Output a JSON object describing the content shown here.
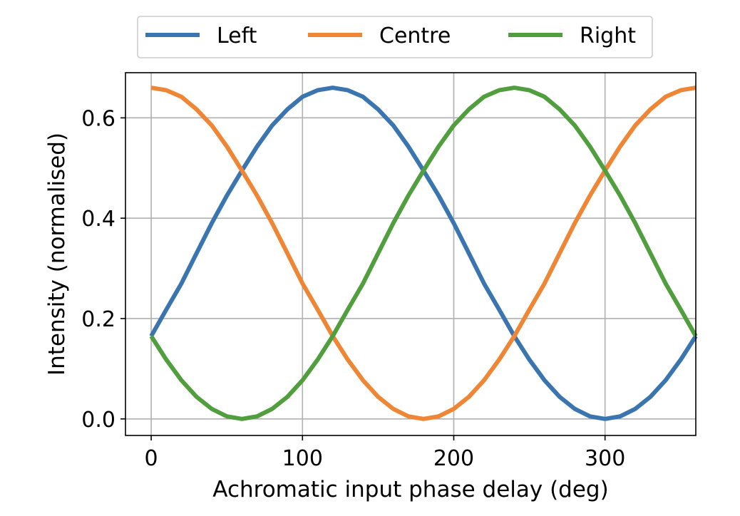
{
  "chart_data": {
    "type": "line",
    "title": "",
    "xlabel": "Achromatic input phase delay (deg)",
    "ylabel": "Intensity (normalised)",
    "xlim": [
      -17,
      360
    ],
    "ylim": [
      -0.033,
      0.69
    ],
    "x_ticks": [
      0,
      100,
      200,
      300
    ],
    "x_tick_labels": [
      "0",
      "100",
      "200",
      "300"
    ],
    "y_ticks": [
      0.0,
      0.2,
      0.4,
      0.6
    ],
    "y_tick_labels": [
      "0.0",
      "0.2",
      "0.4",
      "0.6"
    ],
    "grid": true,
    "legend_position": "top-center",
    "x": [
      0,
      10,
      20,
      30,
      40,
      50,
      60,
      70,
      80,
      90,
      100,
      110,
      120,
      130,
      140,
      150,
      160,
      170,
      180,
      190,
      200,
      210,
      220,
      230,
      240,
      250,
      260,
      270,
      280,
      290,
      300,
      310,
      320,
      330,
      340,
      350,
      360
    ],
    "series": [
      {
        "name": "Left",
        "color": "#3a75b0",
        "values": [
          0.165,
          0.218,
          0.27,
          0.33,
          0.39,
          0.445,
          0.495,
          0.543,
          0.585,
          0.617,
          0.642,
          0.655,
          0.66,
          0.655,
          0.642,
          0.617,
          0.585,
          0.543,
          0.495,
          0.445,
          0.39,
          0.33,
          0.27,
          0.218,
          0.165,
          0.118,
          0.077,
          0.044,
          0.02,
          0.005,
          0.0,
          0.005,
          0.02,
          0.044,
          0.077,
          0.118,
          0.165
        ]
      },
      {
        "name": "Centre",
        "color": "#ef8636",
        "values": [
          0.66,
          0.655,
          0.642,
          0.617,
          0.585,
          0.543,
          0.495,
          0.445,
          0.39,
          0.33,
          0.27,
          0.218,
          0.165,
          0.118,
          0.077,
          0.044,
          0.02,
          0.005,
          0.0,
          0.005,
          0.02,
          0.044,
          0.077,
          0.118,
          0.165,
          0.218,
          0.27,
          0.33,
          0.39,
          0.445,
          0.495,
          0.543,
          0.585,
          0.617,
          0.642,
          0.655,
          0.66
        ]
      },
      {
        "name": "Right",
        "color": "#519e3e",
        "values": [
          0.165,
          0.118,
          0.077,
          0.044,
          0.02,
          0.005,
          0.0,
          0.005,
          0.02,
          0.044,
          0.077,
          0.118,
          0.165,
          0.218,
          0.27,
          0.33,
          0.39,
          0.445,
          0.495,
          0.543,
          0.585,
          0.617,
          0.642,
          0.655,
          0.66,
          0.655,
          0.642,
          0.617,
          0.585,
          0.543,
          0.495,
          0.445,
          0.39,
          0.33,
          0.27,
          0.218,
          0.165
        ]
      }
    ]
  }
}
